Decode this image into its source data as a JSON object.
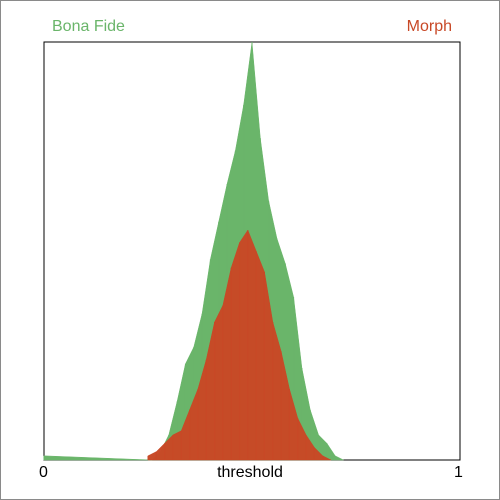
{
  "chart_data": {
    "type": "area",
    "title": "",
    "xlabel": "threshold",
    "ylabel": "",
    "xlim": [
      0,
      1
    ],
    "x_tick_labels": [
      "0",
      "1"
    ],
    "grid": false,
    "legend_placement": "top",
    "series": [
      {
        "name": "Bona Fide",
        "color": "#6ab56a",
        "x": [
          0.0,
          0.26,
          0.28,
          0.3,
          0.32,
          0.34,
          0.36,
          0.38,
          0.4,
          0.42,
          0.44,
          0.46,
          0.48,
          0.5,
          0.52,
          0.54,
          0.56,
          0.58,
          0.6,
          0.62,
          0.64,
          0.66,
          0.68,
          0.7,
          0.72
        ],
        "values": [
          0.01,
          0.0,
          0.02,
          0.06,
          0.14,
          0.23,
          0.27,
          0.35,
          0.48,
          0.57,
          0.66,
          0.74,
          0.85,
          1.0,
          0.77,
          0.62,
          0.53,
          0.47,
          0.39,
          0.22,
          0.12,
          0.06,
          0.04,
          0.01,
          0.0
        ]
      },
      {
        "name": "Morph",
        "color": "#c84826",
        "x": [
          0.25,
          0.27,
          0.29,
          0.31,
          0.33,
          0.35,
          0.37,
          0.39,
          0.41,
          0.43,
          0.45,
          0.47,
          0.49,
          0.51,
          0.53,
          0.55,
          0.57,
          0.59,
          0.61,
          0.63,
          0.65,
          0.67,
          0.69
        ],
        "values": [
          0.01,
          0.02,
          0.04,
          0.06,
          0.07,
          0.12,
          0.17,
          0.24,
          0.33,
          0.37,
          0.46,
          0.52,
          0.55,
          0.5,
          0.45,
          0.33,
          0.26,
          0.17,
          0.1,
          0.06,
          0.03,
          0.01,
          0.0
        ]
      }
    ]
  }
}
